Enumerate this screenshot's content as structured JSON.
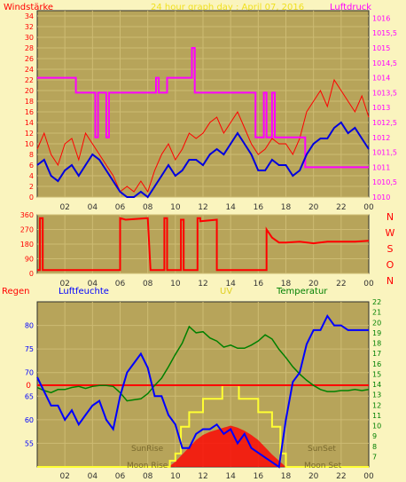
{
  "colors": {
    "background": "#FAF4BE",
    "frame": "#2E2E2E",
    "plot_bg": "#B7A45A",
    "grid": "#CDBB73",
    "wind": "#FF0000",
    "wind_avg": "#0000DD",
    "pressure": "#FF00FF",
    "direction": "#FF0000",
    "humidity": "#0000FF",
    "temperature": "#008000",
    "uv": "#FFFF33",
    "rain": "#FF0000",
    "suntime": "#7A6A2E"
  },
  "chart_data": [
    {
      "type": "line",
      "title": "24 hour graph day : April 07, 2016",
      "left_axis_label": "Windstärke",
      "right_axis_label": "Luftdruck",
      "x_ticks": [
        "02",
        "04",
        "06",
        "08",
        "10",
        "12",
        "14",
        "16",
        "18",
        "20",
        "22",
        "00"
      ],
      "xlim": [
        0,
        24
      ],
      "left_ylim": [
        0,
        35
      ],
      "left_ticks": [
        "0",
        "2",
        "4",
        "6",
        "8",
        "10",
        "12",
        "14",
        "16",
        "18",
        "20",
        "22",
        "24",
        "26",
        "28",
        "30",
        "32",
        "34"
      ],
      "right_ylim": [
        1010,
        1016.25
      ],
      "right_ticks": [
        "1010",
        "1010,5",
        "1011",
        "1011,5",
        "1012",
        "1012,5",
        "1013",
        "1013,5",
        "1014",
        "1014,5",
        "1015",
        "1015,5",
        "1016"
      ],
      "series": [
        {
          "name": "wind_gust",
          "axis": "left",
          "color_key": "wind",
          "x": [
            0,
            0.5,
            1,
            1.5,
            2,
            2.5,
            3,
            3.5,
            4,
            4.5,
            5,
            5.5,
            6,
            6.5,
            7,
            7.5,
            8,
            8.5,
            9,
            9.5,
            10,
            10.5,
            11,
            11.5,
            12,
            12.5,
            13,
            13.5,
            14,
            14.5,
            15,
            15.5,
            16,
            16.5,
            17,
            17.5,
            18,
            18.5,
            19,
            19.5,
            20,
            20.5,
            21,
            21.5,
            22,
            22.5,
            23,
            23.5,
            24
          ],
          "values": [
            9,
            12,
            8,
            6,
            10,
            11,
            7,
            12,
            10,
            8,
            6,
            4,
            1,
            2,
            1,
            3,
            1,
            5,
            8,
            10,
            7,
            9,
            12,
            11,
            12,
            14,
            15,
            12,
            14,
            16,
            13,
            10,
            8,
            9,
            11,
            10,
            10,
            8,
            11,
            16,
            18,
            20,
            17,
            22,
            20,
            18,
            16,
            19,
            15
          ]
        },
        {
          "name": "wind_avg",
          "axis": "left",
          "color_key": "wind_avg",
          "x": [
            0,
            0.5,
            1,
            1.5,
            2,
            2.5,
            3,
            3.5,
            4,
            4.5,
            5,
            5.5,
            6,
            6.5,
            7,
            7.5,
            8,
            8.5,
            9,
            9.5,
            10,
            10.5,
            11,
            11.5,
            12,
            12.5,
            13,
            13.5,
            14,
            14.5,
            15,
            15.5,
            16,
            16.5,
            17,
            17.5,
            18,
            18.5,
            19,
            19.5,
            20,
            20.5,
            21,
            21.5,
            22,
            22.5,
            23,
            23.5,
            24
          ],
          "values": [
            6,
            7,
            4,
            3,
            5,
            6,
            4,
            6,
            8,
            7,
            5,
            3,
            1,
            0,
            0,
            1,
            0,
            2,
            4,
            6,
            4,
            5,
            7,
            7,
            6,
            8,
            9,
            8,
            10,
            12,
            10,
            8,
            5,
            5,
            7,
            6,
            6,
            4,
            5,
            8,
            10,
            11,
            11,
            13,
            14,
            12,
            13,
            11,
            9
          ]
        },
        {
          "name": "pressure",
          "axis": "right",
          "color_key": "pressure",
          "step": true,
          "x": [
            0,
            2.8,
            2.8,
            4.2,
            4.2,
            4.4,
            4.4,
            5,
            5,
            5.2,
            5.2,
            8.6,
            8.6,
            8.8,
            8.8,
            9.4,
            9.4,
            11.2,
            11.2,
            11.4,
            11.4,
            15.8,
            15.8,
            16.4,
            16.4,
            16.6,
            16.6,
            17,
            17,
            17.2,
            17.2,
            19.4,
            19.4,
            24
          ],
          "values": [
            1014,
            1014,
            1013.5,
            1013.5,
            1012,
            1012,
            1013.5,
            1013.5,
            1012,
            1012,
            1013.5,
            1013.5,
            1014,
            1014,
            1013.5,
            1013.5,
            1014,
            1014,
            1015,
            1015,
            1013.5,
            1013.5,
            1012,
            1012,
            1013.5,
            1013.5,
            1012,
            1012,
            1013.5,
            1013.5,
            1012,
            1012,
            1011,
            1011
          ]
        }
      ]
    },
    {
      "type": "scatter",
      "title": "",
      "x_ticks": [
        "02",
        "04",
        "06",
        "08",
        "10",
        "12",
        "14",
        "16",
        "18",
        "20",
        "22",
        "00"
      ],
      "xlim": [
        0,
        24
      ],
      "ylim": [
        0,
        360
      ],
      "y_ticks": [
        "0",
        "90",
        "180",
        "270",
        "360"
      ],
      "compass_labels": [
        "N",
        "W",
        "S",
        "O",
        "N"
      ],
      "series": [
        {
          "name": "wind_direction",
          "color_key": "direction",
          "x": [
            0,
            0.2,
            0.2,
            0.4,
            0.4,
            6,
            6,
            6.4,
            6.4,
            8,
            8,
            8.2,
            8.2,
            9.2,
            9.2,
            9.4,
            9.4,
            10.4,
            10.4,
            10.6,
            10.6,
            11.6,
            11.6,
            11.8,
            11.8,
            13,
            13,
            13.2,
            13.2,
            16.6,
            16.6,
            17,
            17.5,
            18,
            19,
            20,
            21,
            22,
            23,
            24
          ],
          "values": [
            20,
            20,
            340,
            340,
            20,
            20,
            340,
            330,
            330,
            340,
            340,
            20,
            20,
            20,
            340,
            340,
            20,
            20,
            330,
            330,
            20,
            20,
            340,
            340,
            320,
            330,
            20,
            20,
            20,
            20,
            270,
            220,
            190,
            190,
            195,
            185,
            195,
            195,
            195,
            200
          ]
        }
      ]
    },
    {
      "type": "line",
      "title": "",
      "labels": [
        "Regen",
        "Luftfeuchte",
        "UV",
        "Temperatur"
      ],
      "x_ticks": [
        "02",
        "04",
        "06",
        "08",
        "10",
        "12",
        "14",
        "16",
        "18",
        "20",
        "22",
        "00"
      ],
      "xlim": [
        0,
        24
      ],
      "left_ylim": [
        50,
        85
      ],
      "left_ticks": [
        "55",
        "60",
        "65",
        "70",
        "75",
        "80"
      ],
      "rain_ticks": [
        "0"
      ],
      "right_ylim": [
        6,
        22
      ],
      "right_ticks": [
        "7",
        "8",
        "9",
        "10",
        "11",
        "12",
        "13",
        "14",
        "15",
        "16",
        "17",
        "18",
        "19",
        "20",
        "21",
        "22"
      ],
      "annotations": [
        "SunRise",
        "Moon Rise",
        "SunSet",
        "Moon Set"
      ],
      "series": [
        {
          "name": "humidity",
          "axis": "left",
          "color_key": "humidity",
          "x": [
            0,
            0.5,
            1,
            1.5,
            2,
            2.5,
            3,
            3.5,
            4,
            4.5,
            5,
            5.5,
            6,
            6.5,
            7,
            7.5,
            8,
            8.5,
            9,
            9.5,
            10,
            10.5,
            11,
            11.5,
            12,
            12.5,
            13,
            13.5,
            14,
            14.5,
            15,
            15.5,
            16,
            16.5,
            17,
            17.5,
            18,
            18.5,
            19,
            19.5,
            20,
            20.5,
            21,
            21.5,
            22,
            22.5,
            23,
            23.5,
            24
          ],
          "values": [
            69,
            66,
            63,
            63,
            60,
            62,
            59,
            61,
            63,
            64,
            60,
            58,
            65,
            70,
            72,
            74,
            71,
            65,
            65,
            61,
            59,
            54,
            54,
            57,
            58,
            58,
            59,
            57,
            58,
            55,
            57,
            54,
            53,
            52,
            51,
            50,
            60,
            68,
            70,
            76,
            79,
            79,
            82,
            80,
            80,
            79,
            79,
            79,
            79
          ]
        },
        {
          "name": "temperature",
          "axis": "right",
          "color_key": "temperature",
          "x": [
            0,
            0.5,
            1,
            1.5,
            2,
            2.5,
            3,
            3.5,
            4,
            4.5,
            5,
            5.5,
            6,
            6.5,
            7,
            7.5,
            8,
            8.5,
            9,
            9.5,
            10,
            10.5,
            11,
            11.5,
            12,
            12.5,
            13,
            13.5,
            14,
            14.5,
            15,
            15.5,
            16,
            16.5,
            17,
            17.5,
            18,
            18.5,
            19,
            19.5,
            20,
            20.5,
            21,
            21.5,
            22,
            22.5,
            23,
            23.5,
            24
          ],
          "values": [
            13.7,
            13.4,
            13.2,
            13.5,
            13.5,
            13.7,
            13.8,
            13.6,
            13.8,
            13.9,
            13.9,
            13.8,
            13.2,
            12.4,
            12.5,
            12.6,
            13.1,
            13.9,
            14.6,
            15.7,
            16.9,
            18.0,
            19.6,
            19.0,
            19.1,
            18.5,
            18.2,
            17.6,
            17.8,
            17.5,
            17.5,
            17.8,
            18.2,
            18.8,
            18.4,
            17.4,
            16.6,
            15.7,
            15.0,
            14.4,
            13.9,
            13.5,
            13.3,
            13.3,
            13.4,
            13.4,
            13.5,
            13.4,
            13.5
          ]
        },
        {
          "name": "uv",
          "axis": "right",
          "color_key": "uv",
          "step": true,
          "x": [
            0,
            9.6,
            9.6,
            10,
            10,
            10.4,
            10.4,
            11,
            11,
            12,
            12,
            13.4,
            13.4,
            14.6,
            14.6,
            16,
            16,
            17,
            17,
            17.6,
            17.6,
            18,
            18,
            24
          ],
          "values": [
            6,
            6,
            6.6,
            6.6,
            7.3,
            7.3,
            9.9,
            9.9,
            11.3,
            11.3,
            12.6,
            12.6,
            13.9,
            13.9,
            12.6,
            12.6,
            11.3,
            11.3,
            9.9,
            9.9,
            7.3,
            7.3,
            6,
            6
          ]
        },
        {
          "name": "solar",
          "axis": "right",
          "color_key": "rain",
          "x": [
            9.5,
            10,
            10.5,
            11,
            11.5,
            12,
            12.5,
            13,
            13.5,
            14,
            14.5,
            15,
            15.5,
            16,
            16.5,
            17,
            17.5,
            18
          ],
          "values": [
            6,
            6.5,
            7.2,
            7.9,
            8.6,
            9.1,
            9.4,
            9.6,
            9.8,
            10,
            9.8,
            9.5,
            9.1,
            8.6,
            7.9,
            7.2,
            6.6,
            6
          ]
        }
      ]
    }
  ]
}
